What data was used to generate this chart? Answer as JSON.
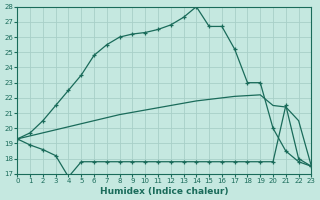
{
  "xlabel": "Humidex (Indice chaleur)",
  "bg_color": "#c5e8e0",
  "grid_color": "#a8cfc8",
  "line_color": "#1a6b5a",
  "line1_x": [
    0,
    1,
    2,
    3,
    4,
    5,
    6,
    7,
    8,
    9,
    10,
    11,
    12,
    13,
    14,
    15,
    16,
    17,
    18,
    19,
    20,
    21,
    22,
    23
  ],
  "line1_y": [
    19.3,
    19.7,
    20.5,
    21.5,
    22.5,
    23.5,
    24.8,
    25.5,
    26.0,
    26.2,
    26.3,
    26.5,
    26.8,
    27.3,
    28.0,
    26.7,
    26.7,
    25.2,
    23.0,
    23.0,
    20.0,
    18.5,
    17.8,
    17.5
  ],
  "line2_x": [
    0,
    1,
    2,
    3,
    4,
    5,
    6,
    7,
    8,
    9,
    10,
    11,
    12,
    13,
    14,
    15,
    16,
    17,
    18,
    19,
    20,
    21,
    22,
    23
  ],
  "line2_y": [
    19.3,
    19.5,
    19.7,
    19.9,
    20.1,
    20.3,
    20.5,
    20.7,
    20.9,
    21.05,
    21.2,
    21.35,
    21.5,
    21.65,
    21.8,
    21.9,
    22.0,
    22.1,
    22.15,
    22.2,
    21.5,
    21.4,
    20.5,
    17.5
  ],
  "line3_x": [
    0,
    1,
    2,
    3,
    4,
    5,
    6,
    7,
    8,
    9,
    10,
    11,
    12,
    13,
    14,
    15,
    16,
    17,
    18,
    19,
    20,
    21,
    22,
    23
  ],
  "line3_y": [
    19.3,
    18.9,
    18.6,
    18.2,
    16.8,
    17.8,
    17.8,
    17.8,
    17.8,
    17.8,
    17.8,
    17.8,
    17.8,
    17.8,
    17.8,
    17.8,
    17.8,
    17.8,
    17.8,
    17.8,
    17.8,
    21.5,
    18.0,
    17.5
  ],
  "ylim": [
    17,
    28
  ],
  "xlim": [
    0,
    23
  ],
  "yticks": [
    17,
    18,
    19,
    20,
    21,
    22,
    23,
    24,
    25,
    26,
    27,
    28
  ],
  "xticks": [
    0,
    1,
    2,
    3,
    4,
    5,
    6,
    7,
    8,
    9,
    10,
    11,
    12,
    13,
    14,
    15,
    16,
    17,
    18,
    19,
    20,
    21,
    22,
    23
  ]
}
